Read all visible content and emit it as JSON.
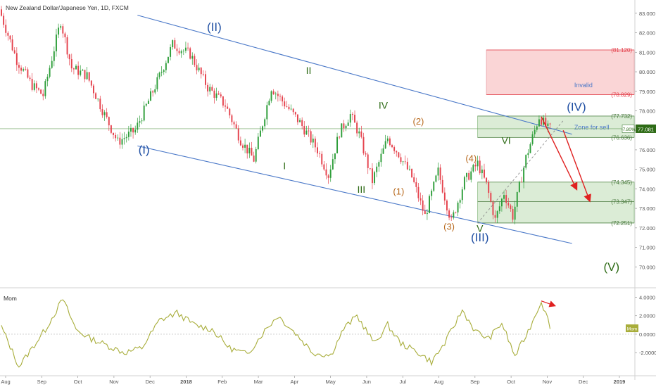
{
  "header": {
    "symbol_title": "New Zealand Dollar/Japanese Yen, 1D, FXCM"
  },
  "colors": {
    "up": "#2e9e3a",
    "down": "#e5424d",
    "channel": "#4a78c8",
    "label_blue": "#1f4fa3",
    "label_green": "#2e6b16",
    "label_orange": "#b86a1e",
    "zone_fill": "#cfe5c8",
    "invalid_fill": "#f9d0d2",
    "mom_line": "#a8ad3a",
    "arrow": "#e02020",
    "axis_text": "#555555"
  },
  "chart_data": [
    {
      "type": "candlestick",
      "title": "New Zealand Dollar/Japanese Yen, 1D, FXCM",
      "xlabel": "",
      "ylabel": "",
      "ylim": [
        69.0,
        83.5
      ],
      "x_ticks": [
        "Aug",
        "Sep",
        "Oct",
        "Nov",
        "Dec",
        "2018",
        "Feb",
        "Mar",
        "Apr",
        "May",
        "Jun",
        "Jul",
        "Aug",
        "Sep",
        "Oct",
        "Nov",
        "Dec",
        "2019"
      ],
      "y_ticks": [
        "83.000",
        "82.000",
        "81.000",
        "80.000",
        "79.000",
        "78.000",
        "77.000",
        "76.000",
        "75.000",
        "74.000",
        "73.000",
        "72.000",
        "71.000",
        "70.000"
      ],
      "last_price": {
        "label": "77.081",
        "value": 77.081,
        "change": "-7.80%"
      },
      "anchors": [
        {
          "i": 0,
          "v": 83.2
        },
        {
          "i": 8,
          "v": 80.6
        },
        {
          "i": 15,
          "v": 79.3
        },
        {
          "i": 20,
          "v": 78.8
        },
        {
          "i": 28,
          "v": 82.6
        },
        {
          "i": 33,
          "v": 80.2
        },
        {
          "i": 40,
          "v": 79.8
        },
        {
          "i": 48,
          "v": 77.8
        },
        {
          "i": 54,
          "v": 76.4
        },
        {
          "i": 62,
          "v": 77.0
        },
        {
          "i": 72,
          "v": 79.5
        },
        {
          "i": 79,
          "v": 81.4
        },
        {
          "i": 87,
          "v": 80.9
        },
        {
          "i": 95,
          "v": 79.2
        },
        {
          "i": 103,
          "v": 78.3
        },
        {
          "i": 110,
          "v": 76.5
        },
        {
          "i": 116,
          "v": 75.5
        },
        {
          "i": 124,
          "v": 79.2
        },
        {
          "i": 129,
          "v": 78.5
        },
        {
          "i": 137,
          "v": 77.4
        },
        {
          "i": 145,
          "v": 76.0
        },
        {
          "i": 150,
          "v": 74.7
        },
        {
          "i": 155,
          "v": 76.9
        },
        {
          "i": 160,
          "v": 77.8
        },
        {
          "i": 164,
          "v": 76.8
        },
        {
          "i": 170,
          "v": 74.4
        },
        {
          "i": 177,
          "v": 76.6
        },
        {
          "i": 182,
          "v": 75.8
        },
        {
          "i": 188,
          "v": 74.6
        },
        {
          "i": 194,
          "v": 72.6
        },
        {
          "i": 200,
          "v": 74.9
        },
        {
          "i": 206,
          "v": 72.3
        },
        {
          "i": 212,
          "v": 74.4
        },
        {
          "i": 218,
          "v": 75.3
        },
        {
          "i": 222,
          "v": 74.2
        },
        {
          "i": 226,
          "v": 72.4
        },
        {
          "i": 230,
          "v": 73.8
        },
        {
          "i": 234,
          "v": 72.6
        },
        {
          "i": 240,
          "v": 75.6
        },
        {
          "i": 246,
          "v": 77.7
        },
        {
          "i": 250,
          "v": 77.08
        }
      ],
      "zones": [
        {
          "name": "invalid",
          "label": "Invalid",
          "top": 81.12,
          "bottom": 78.829
        },
        {
          "name": "sell",
          "label": "Zone for sell",
          "top": 77.732,
          "bottom": 76.636
        },
        {
          "name": "target",
          "label": "",
          "top": 74.345,
          "bottom": 72.251
        }
      ],
      "levels": [
        {
          "label": "(81.120)",
          "value": 81.12,
          "color": "#e5424d"
        },
        {
          "label": "(78.829)",
          "value": 78.829,
          "color": "#e5424d"
        },
        {
          "label": "(77.732)",
          "value": 77.732,
          "color": "#4a7a3e"
        },
        {
          "label": "(76.636)",
          "value": 76.636,
          "color": "#4a7a3e"
        },
        {
          "label": "(74.345)",
          "value": 74.345,
          "color": "#4a7a3e"
        },
        {
          "label": "(73.347)",
          "value": 73.347,
          "color": "#4a7a3e"
        },
        {
          "label": "(72.251)",
          "value": 72.251,
          "color": "#4a7a3e"
        }
      ],
      "channel": [
        {
          "from": [
            62,
            76.2
          ],
          "to": [
            260,
            71.2
          ]
        },
        {
          "from": [
            62,
            82.9
          ],
          "to": [
            260,
            76.8
          ]
        }
      ],
      "wave_labels": [
        {
          "text": "(I)",
          "i": 65,
          "v": 75.8,
          "color": "label_blue",
          "size": 17
        },
        {
          "text": "(II)",
          "i": 97,
          "v": 82.1,
          "color": "label_blue",
          "size": 17
        },
        {
          "text": "(III)",
          "i": 218,
          "v": 71.3,
          "color": "label_blue",
          "size": 17
        },
        {
          "text": "(IV)",
          "i": 262,
          "v": 78.0,
          "color": "label_blue",
          "size": 17
        },
        {
          "text": "(V)",
          "i": 278,
          "v": 69.8,
          "color": "label_green",
          "size": 17
        },
        {
          "text": "I",
          "i": 129,
          "v": 75.0,
          "color": "label_green",
          "size": 14
        },
        {
          "text": "II",
          "i": 140,
          "v": 79.9,
          "color": "label_green",
          "size": 14
        },
        {
          "text": "III",
          "i": 164,
          "v": 73.8,
          "color": "label_green",
          "size": 14
        },
        {
          "text": "IV",
          "i": 174,
          "v": 78.1,
          "color": "label_green",
          "size": 14
        },
        {
          "text": "V",
          "i": 218,
          "v": 71.8,
          "color": "label_green",
          "size": 14
        },
        {
          "text": "VI",
          "i": 230,
          "v": 76.3,
          "color": "label_green",
          "size": 14
        },
        {
          "text": "(1)",
          "i": 181,
          "v": 73.7,
          "color": "label_orange",
          "size": 13
        },
        {
          "text": "(2)",
          "i": 190,
          "v": 77.3,
          "color": "label_orange",
          "size": 13
        },
        {
          "text": "(3)",
          "i": 204,
          "v": 71.9,
          "color": "label_orange",
          "size": 13
        },
        {
          "text": "(4)",
          "i": 214,
          "v": 75.4,
          "color": "label_orange",
          "size": 13
        }
      ],
      "projection": [
        {
          "from": [
            246,
            77.7
          ],
          "to": [
            262,
            74.0
          ]
        },
        {
          "from": [
            256,
            77.0
          ],
          "to": [
            268,
            73.4
          ]
        }
      ]
    },
    {
      "type": "line",
      "title": "Mom",
      "series": [
        {
          "name": "Mom",
          "anchors": [
            {
              "i": 0,
              "v": 0.8
            },
            {
              "i": 8,
              "v": -3.5
            },
            {
              "i": 14,
              "v": -1.5
            },
            {
              "i": 20,
              "v": 0.5
            },
            {
              "i": 28,
              "v": 3.8
            },
            {
              "i": 34,
              "v": 0.5
            },
            {
              "i": 40,
              "v": -0.4
            },
            {
              "i": 48,
              "v": -1.2
            },
            {
              "i": 56,
              "v": -2.0
            },
            {
              "i": 64,
              "v": -1.5
            },
            {
              "i": 72,
              "v": 1.5
            },
            {
              "i": 80,
              "v": 2.3
            },
            {
              "i": 88,
              "v": 1.0
            },
            {
              "i": 96,
              "v": 0.5
            },
            {
              "i": 104,
              "v": -1.5
            },
            {
              "i": 112,
              "v": -2.2
            },
            {
              "i": 120,
              "v": 0.4
            },
            {
              "i": 126,
              "v": 2.0
            },
            {
              "i": 134,
              "v": 0.1
            },
            {
              "i": 142,
              "v": -2.0
            },
            {
              "i": 150,
              "v": -2.3
            },
            {
              "i": 156,
              "v": 0.6
            },
            {
              "i": 162,
              "v": 2.0
            },
            {
              "i": 170,
              "v": -1.0
            },
            {
              "i": 176,
              "v": 1.0
            },
            {
              "i": 182,
              "v": -1.0
            },
            {
              "i": 190,
              "v": -2.0
            },
            {
              "i": 196,
              "v": -3.0
            },
            {
              "i": 202,
              "v": -1.0
            },
            {
              "i": 210,
              "v": 2.6
            },
            {
              "i": 216,
              "v": 0.3
            },
            {
              "i": 222,
              "v": -0.5
            },
            {
              "i": 228,
              "v": 1.2
            },
            {
              "i": 234,
              "v": -2.4
            },
            {
              "i": 240,
              "v": 0.3
            },
            {
              "i": 246,
              "v": 3.6
            },
            {
              "i": 250,
              "v": 0.9
            }
          ]
        }
      ],
      "ylim": [
        -4.2,
        4.8
      ],
      "y_ticks": [
        "4.0000",
        "2.0000",
        "0.0000",
        "-2.0000"
      ],
      "last_label": "Mom",
      "divergence_arrow": {
        "from": [
          246,
          3.6
        ],
        "to": [
          252,
          3.1
        ]
      }
    }
  ]
}
